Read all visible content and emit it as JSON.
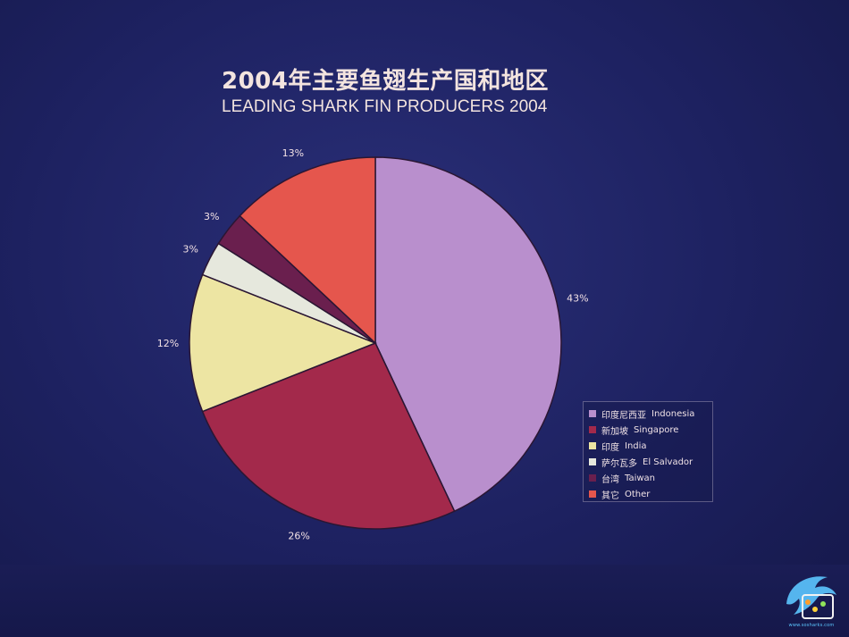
{
  "chart_data": {
    "type": "pie",
    "title": "2004年主要鱼翅生产国和地区",
    "subtitle": "LEADING SHARK FIN PRODUCERS 2004",
    "slices": [
      {
        "label_cn": "印度尼西亚",
        "label_en": "Indonesia",
        "value": 43,
        "label": "43%",
        "color": "#b98fcd"
      },
      {
        "label_cn": "新加坡",
        "label_en": "Singapore",
        "value": 26,
        "label": "26%",
        "color": "#a3294b"
      },
      {
        "label_cn": "印度",
        "label_en": "India",
        "value": 12,
        "label": "12%",
        "color": "#ede5a3"
      },
      {
        "label_cn": "萨尔瓦多",
        "label_en": "El Salvador",
        "value": 3,
        "label": "3%",
        "color": "#e6e8dd"
      },
      {
        "label_cn": "台湾",
        "label_en": "Taiwan",
        "value": 3,
        "label": "3%",
        "color": "#6a1f4e"
      },
      {
        "label_cn": "其它",
        "label_en": "Other",
        "value": 13,
        "label": "13%",
        "color": "#e5564d"
      }
    ],
    "legend_position": "bottom-right"
  },
  "watermark": {
    "text": "www.sosharks.com",
    "accent": "#5cc6ff"
  }
}
